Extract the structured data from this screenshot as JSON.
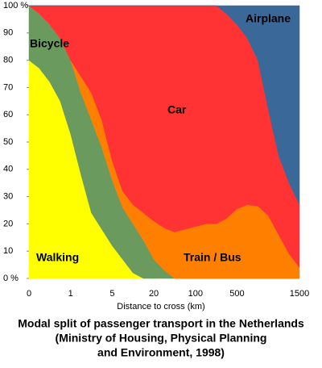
{
  "chart_data": {
    "type": "stacked_area",
    "title": [
      "Modal split of passenger transport in the Netherlands",
      "(Ministry of Housing, Physical Planning",
      "and Environment, 1998)"
    ],
    "xlabel": "Distance to cross (km)",
    "categories": [
      "0",
      null,
      null,
      null,
      "1",
      null,
      null,
      null,
      "5",
      null,
      null,
      null,
      "20",
      null,
      null,
      null,
      "100",
      null,
      null,
      null,
      "500",
      null,
      null,
      null,
      null,
      null,
      "1500"
    ],
    "series": [
      {
        "name": "Walking",
        "color": "#ffff00",
        "values": [
          80,
          77,
          72,
          65,
          53,
          38,
          24,
          18,
          12,
          7,
          2,
          0,
          0,
          0,
          0,
          0,
          0,
          0,
          0,
          0,
          0,
          0,
          0,
          0,
          0,
          0,
          0
        ]
      },
      {
        "name": "Bicycle",
        "color": "#6b9a5e",
        "values": [
          20,
          20,
          21,
          23,
          27,
          30,
          34,
          30,
          24,
          19,
          18,
          14,
          7,
          3,
          0,
          0,
          0,
          0,
          0,
          0,
          0,
          0,
          0,
          0,
          0,
          0,
          0
        ]
      },
      {
        "name": "Train / Bus",
        "color": "#ff8000",
        "values": [
          0,
          0,
          0,
          0,
          0,
          6,
          10,
          10,
          7,
          6,
          7,
          10,
          14,
          15.5,
          17,
          18,
          19,
          20,
          20,
          22,
          25.5,
          27,
          26.5,
          23,
          16,
          9,
          4
        ]
      },
      {
        "name": "Car",
        "color": "#ff3333",
        "values": [
          0,
          3,
          7,
          12,
          20,
          26,
          32,
          42,
          57,
          68,
          73,
          76,
          79,
          81.5,
          83,
          82,
          81,
          80,
          80,
          75,
          67.5,
          61,
          53.5,
          39,
          29,
          26,
          23
        ]
      },
      {
        "name": "Airplane",
        "color": "#3a6899",
        "values": [
          0,
          0,
          0,
          0,
          0,
          0,
          0,
          0,
          0,
          0,
          0,
          0,
          0,
          0,
          0,
          0,
          0,
          0,
          0,
          3,
          7,
          12,
          20,
          38,
          55,
          65,
          73
        ]
      }
    ],
    "ylim": [
      0,
      100
    ],
    "yticks": [
      {
        "value": 0,
        "label": "0 %"
      },
      10,
      20,
      30,
      40,
      50,
      60,
      70,
      80,
      90,
      {
        "value": 100,
        "label": "100 %"
      }
    ],
    "grid": false
  }
}
